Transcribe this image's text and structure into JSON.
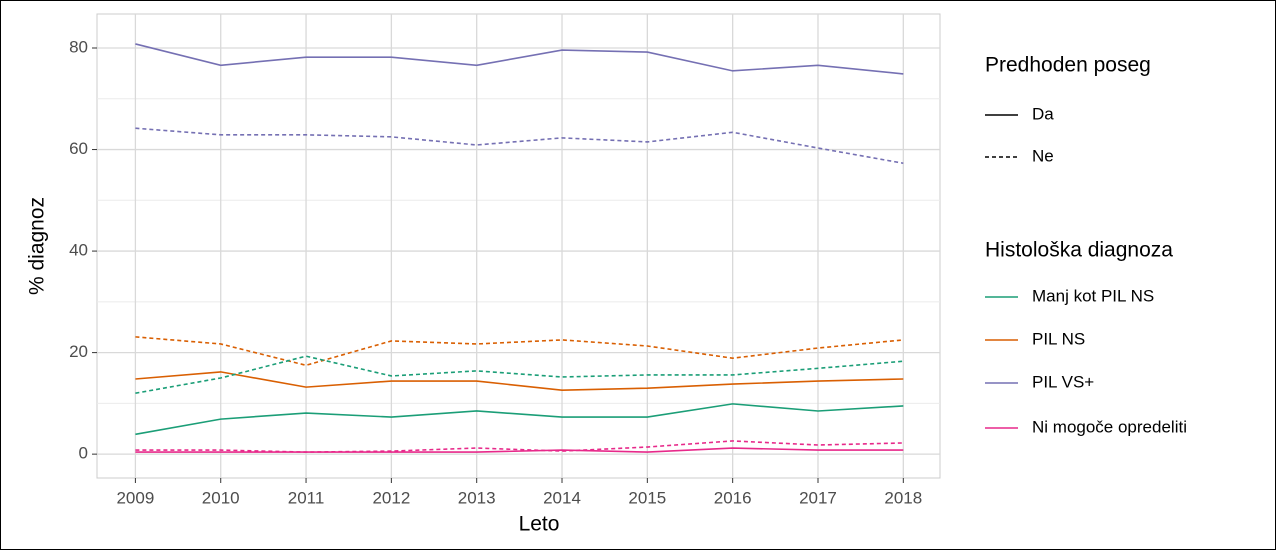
{
  "chart_data": {
    "type": "line",
    "xlabel": "Leto",
    "ylabel": "% diagnoz",
    "x": [
      2009,
      2010,
      2011,
      2012,
      2013,
      2014,
      2015,
      2016,
      2017,
      2018
    ],
    "xlim": [
      2008.55,
      2018.43
    ],
    "xticks": [
      2009,
      2010,
      2011,
      2012,
      2013,
      2014,
      2015,
      2016,
      2017,
      2018
    ],
    "ylim": [
      -4.7,
      86.7
    ],
    "yticks": [
      0,
      20,
      40,
      60,
      80
    ],
    "yminor": [
      10,
      30,
      50,
      70
    ],
    "grid": true,
    "series": [
      {
        "color": "#7570b3",
        "linetype": "solid",
        "values": [
          80.8,
          76.6,
          78.2,
          78.2,
          76.6,
          79.6,
          79.2,
          75.5,
          76.6,
          74.9
        ]
      },
      {
        "color": "#7570b3",
        "linetype": "dashed",
        "values": [
          64.2,
          62.9,
          62.9,
          62.5,
          60.9,
          62.3,
          61.5,
          63.4,
          60.3,
          57.3
        ]
      },
      {
        "color": "#d95f02",
        "linetype": "dashed",
        "values": [
          23.1,
          21.7,
          17.5,
          22.3,
          21.7,
          22.5,
          21.3,
          18.9,
          20.9,
          22.5
        ]
      },
      {
        "color": "#d95f02",
        "linetype": "solid",
        "values": [
          14.8,
          16.2,
          13.2,
          14.4,
          14.4,
          12.6,
          13.0,
          13.8,
          14.4,
          14.8
        ]
      },
      {
        "color": "#1b9e77",
        "linetype": "dashed",
        "values": [
          12.0,
          15.0,
          19.3,
          15.4,
          16.4,
          15.2,
          15.6,
          15.6,
          16.9,
          18.3
        ]
      },
      {
        "color": "#1b9e77",
        "linetype": "solid",
        "values": [
          3.9,
          6.9,
          8.1,
          7.3,
          8.5,
          7.3,
          7.3,
          9.9,
          8.5,
          9.5
        ]
      },
      {
        "color": "#e7298a",
        "linetype": "dashed",
        "values": [
          0.8,
          0.8,
          0.4,
          0.6,
          1.2,
          0.6,
          1.4,
          2.6,
          1.8,
          2.2
        ]
      },
      {
        "color": "#e7298a",
        "linetype": "solid",
        "values": [
          0.4,
          0.4,
          0.4,
          0.4,
          0.4,
          0.8,
          0.4,
          1.2,
          0.8,
          0.8
        ]
      }
    ],
    "legends": [
      {
        "title": "Predhoden poseg",
        "entries": [
          {
            "label": "Da",
            "linetype": "solid"
          },
          {
            "label": "Ne",
            "linetype": "dashed"
          }
        ]
      },
      {
        "title": "Histološka diagnoza",
        "entries": [
          {
            "label": "Manj kot PIL NS",
            "color": "#1b9e77"
          },
          {
            "label": "PIL NS",
            "color": "#d95f02"
          },
          {
            "label": "PIL VS+",
            "color": "#7570b3"
          },
          {
            "label": "Ni mogoče opredeliti",
            "color": "#e7298a"
          }
        ]
      }
    ]
  }
}
